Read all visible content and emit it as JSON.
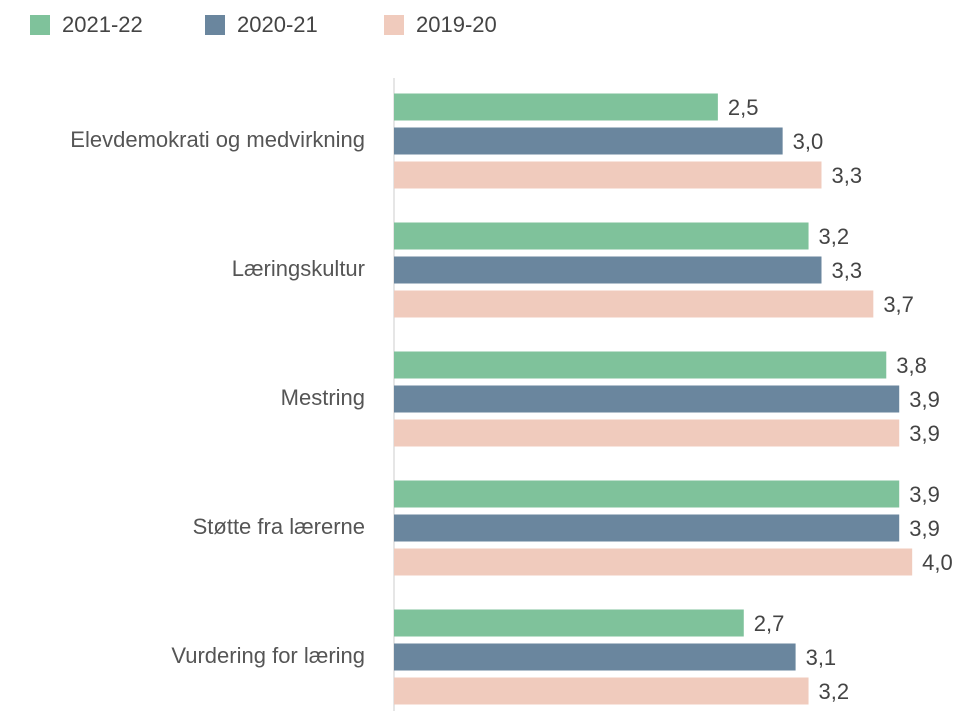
{
  "chart_data": {
    "type": "bar",
    "orientation": "horizontal",
    "categories": [
      "Elevdemokrati og medvirkning",
      "Læringskultur",
      "Mestring",
      "Støtte fra lærerne",
      "Vurdering for læring"
    ],
    "series": [
      {
        "name": "2021-22",
        "color": "#7fc29b",
        "values": [
          2.5,
          3.2,
          3.8,
          3.9,
          2.7
        ],
        "value_labels": [
          "2,5",
          "3,2",
          "3,8",
          "3,9",
          "2,7"
        ]
      },
      {
        "name": "2020-21",
        "color": "#6a869e",
        "values": [
          3.0,
          3.3,
          3.9,
          3.9,
          3.1
        ],
        "value_labels": [
          "3,0",
          "3,3",
          "3,9",
          "3,9",
          "3,1"
        ]
      },
      {
        "name": "2019-20",
        "color": "#f0cbbd",
        "values": [
          3.3,
          3.7,
          3.9,
          4.0,
          3.2
        ],
        "value_labels": [
          "3,3",
          "3,7",
          "3,9",
          "4,0",
          "3,2"
        ]
      }
    ],
    "xlim": [
      0,
      4.4
    ],
    "legend": "top"
  }
}
